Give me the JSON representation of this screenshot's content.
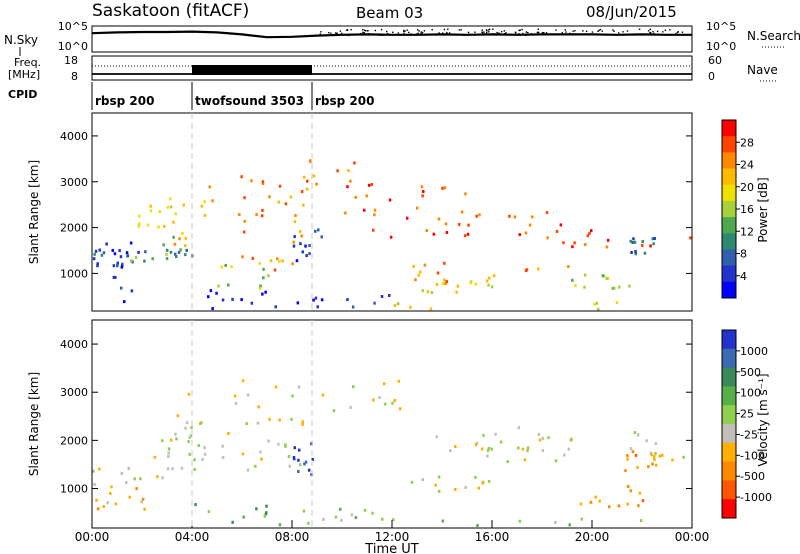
{
  "header": {
    "station": "Saskatoon (fitACF)",
    "beam": "Beam 03",
    "date": "08/Jun/2015"
  },
  "side_labels": {
    "nsky": "N.Sky",
    "freq_top": "Freq.",
    "freq_unit": "[MHz]",
    "cpid": "CPID",
    "nsearch": "N.Search",
    "nave": "Nave"
  },
  "chart_data": [
    {
      "type": "line",
      "name": "noise_panel",
      "left_axis": {
        "ticks": [
          "10^5",
          "10^0"
        ],
        "label": "N.Sky"
      },
      "right_axis": {
        "ticks": [
          "10^5",
          "10^0"
        ],
        "label": "N.Search"
      },
      "x": [
        0,
        1,
        2,
        3,
        4,
        5,
        6,
        7,
        8,
        9,
        10,
        11,
        12,
        13,
        14,
        15,
        16,
        17,
        18,
        19,
        20,
        21,
        22,
        23,
        24
      ],
      "nsky_log": [
        4.2,
        4.4,
        4.5,
        4.5,
        4.6,
        4.4,
        3.9,
        3.2,
        3.3,
        3.6,
        3.8,
        3.9,
        3.8,
        3.8,
        3.9,
        3.8,
        3.9,
        3.8,
        3.9,
        3.9,
        3.9,
        3.8,
        3.9,
        3.8,
        3.8
      ]
    },
    {
      "type": "line",
      "name": "frequency_panel",
      "left_axis": {
        "ticks": [
          "18",
          "8"
        ],
        "label": "Freq. [MHz]"
      },
      "right_axis": {
        "ticks": [
          "60",
          "0"
        ],
        "label": "Nave"
      },
      "freq_mhz": 11.0,
      "nave": 25,
      "busy_interval": [
        4.0,
        8.8
      ]
    },
    {
      "type": "table",
      "name": "cpid_panel",
      "segments": [
        {
          "label": "rbsp 200",
          "start": 0,
          "end": 4.0
        },
        {
          "label": "twofsound 3503",
          "start": 4.0,
          "end": 8.8
        },
        {
          "label": "rbsp 200",
          "start": 8.8,
          "end": 24
        }
      ]
    },
    {
      "type": "heatmap",
      "name": "power_panel",
      "ylabel": "Slant Range [km]",
      "yticks": [
        1000,
        2000,
        3000,
        4000
      ],
      "ylim": [
        180,
        4500
      ],
      "xlim": [
        0,
        24
      ],
      "colorbar": {
        "label": "Power [dB]",
        "ticks": [
          "28",
          "24",
          "20",
          "16",
          "12",
          "8",
          "4"
        ],
        "colors": [
          "#ff0000",
          "#ff4400",
          "#ff8800",
          "#ffbb00",
          "#f0e000",
          "#a8d038",
          "#4ea84e",
          "#2e8a6e",
          "#2f5fae",
          "#2233cc",
          "#0000ff"
        ]
      },
      "regions": [
        {
          "x": [
            0,
            1.8
          ],
          "y": [
            1200,
            1700
          ],
          "level": 9
        },
        {
          "x": [
            0,
            4.2
          ],
          "y": [
            1400,
            1600
          ],
          "level": 8
        },
        {
          "x": [
            0.8,
            1.6
          ],
          "y": [
            400,
            1500
          ],
          "level": 9
        },
        {
          "x": [
            1.5,
            3.8
          ],
          "y": [
            1300,
            1900
          ],
          "level": 6
        },
        {
          "x": [
            1.8,
            3.5
          ],
          "y": [
            2000,
            2500
          ],
          "level": 4
        },
        {
          "x": [
            3.0,
            4.8
          ],
          "y": [
            1400,
            3000
          ],
          "level": 3
        },
        {
          "x": [
            4.0,
            8.8
          ],
          "y": [
            220,
            700
          ],
          "level": 10
        },
        {
          "x": [
            5.0,
            7.5
          ],
          "y": [
            700,
            1300
          ],
          "level": 5
        },
        {
          "x": [
            5.5,
            8.5
          ],
          "y": [
            1100,
            3200
          ],
          "level": 2
        },
        {
          "x": [
            8.0,
            9.2
          ],
          "y": [
            1300,
            2000
          ],
          "level": 9
        },
        {
          "x": [
            8.0,
            10.5
          ],
          "y": [
            2800,
            3500
          ],
          "level": 2
        },
        {
          "x": [
            8.5,
            12.0
          ],
          "y": [
            200,
            600
          ],
          "level": 9
        },
        {
          "x": [
            10.0,
            15.5
          ],
          "y": [
            1800,
            3000
          ],
          "level": 1
        },
        {
          "x": [
            12.0,
            22.0
          ],
          "y": [
            200,
            400
          ],
          "level": 4
        },
        {
          "x": [
            12.0,
            19.5
          ],
          "y": [
            800,
            1300
          ],
          "level": 2
        },
        {
          "x": [
            13.0,
            16.0
          ],
          "y": [
            600,
            900
          ],
          "level": 4
        },
        {
          "x": [
            15.0,
            19.0
          ],
          "y": [
            1800,
            2400
          ],
          "level": 1
        },
        {
          "x": [
            19.0,
            21.5
          ],
          "y": [
            700,
            1000
          ],
          "level": 5
        },
        {
          "x": [
            18.0,
            24.0
          ],
          "y": [
            1600,
            2000
          ],
          "level": 1
        },
        {
          "x": [
            21.5,
            22.5
          ],
          "y": [
            1400,
            1800
          ],
          "level": 8
        }
      ]
    },
    {
      "type": "heatmap",
      "name": "velocity_panel",
      "ylabel": "Slant Range [km]",
      "yticks": [
        1000,
        2000,
        3000,
        4000
      ],
      "ylim": [
        180,
        4500
      ],
      "xlim": [
        0,
        24
      ],
      "xticks": [
        "00:00",
        "04:00",
        "08:00",
        "12:00",
        "16:00",
        "20:00",
        "00:00"
      ],
      "xlabel": "Time UT",
      "colorbar": {
        "label": "Velocity [m s⁻¹]",
        "ticks": [
          "1000",
          "500",
          "100",
          "25",
          "-25",
          "-100",
          "-500",
          "-1000"
        ],
        "colors": [
          "#2233cc",
          "#3a6ab0",
          "#3a8a5a",
          "#55b04a",
          "#90d050",
          "#c0c0b8",
          "#ffb000",
          "#ff8800",
          "#ff5500",
          "#ff0000"
        ]
      },
      "regions": [
        {
          "x": [
            0,
            3.8
          ],
          "y": [
            1100,
            1600
          ],
          "level": 5
        },
        {
          "x": [
            0,
            2.2
          ],
          "y": [
            600,
            1100
          ],
          "level": 6
        },
        {
          "x": [
            2.2,
            4.5
          ],
          "y": [
            1300,
            2200
          ],
          "level": 5
        },
        {
          "x": [
            3.0,
            5.5
          ],
          "y": [
            1500,
            3000
          ],
          "level": 5
        },
        {
          "x": [
            4.0,
            8.8
          ],
          "y": [
            220,
            700
          ],
          "level": 3
        },
        {
          "x": [
            5.5,
            8.5
          ],
          "y": [
            1400,
            3400
          ],
          "level": 5
        },
        {
          "x": [
            8.0,
            8.8
          ],
          "y": [
            1300,
            2000
          ],
          "level": 0
        },
        {
          "x": [
            8.5,
            12.0
          ],
          "y": [
            200,
            600
          ],
          "level": 4
        },
        {
          "x": [
            8.8,
            12.5
          ],
          "y": [
            2600,
            3300
          ],
          "level": 5
        },
        {
          "x": [
            12.0,
            22.0
          ],
          "y": [
            200,
            400
          ],
          "level": 4
        },
        {
          "x": [
            12.0,
            16.0
          ],
          "y": [
            900,
            1300
          ],
          "level": 5
        },
        {
          "x": [
            13.0,
            19.0
          ],
          "y": [
            1800,
            2300
          ],
          "level": 5
        },
        {
          "x": [
            15.0,
            20.0
          ],
          "y": [
            1500,
            2200
          ],
          "level": 5
        },
        {
          "x": [
            19.5,
            22.0
          ],
          "y": [
            650,
            1100
          ],
          "level": 7
        },
        {
          "x": [
            21.5,
            24.0
          ],
          "y": [
            1600,
            2200
          ],
          "level": 5
        },
        {
          "x": [
            21.0,
            23.0
          ],
          "y": [
            1400,
            1800
          ],
          "level": 7
        }
      ]
    }
  ]
}
